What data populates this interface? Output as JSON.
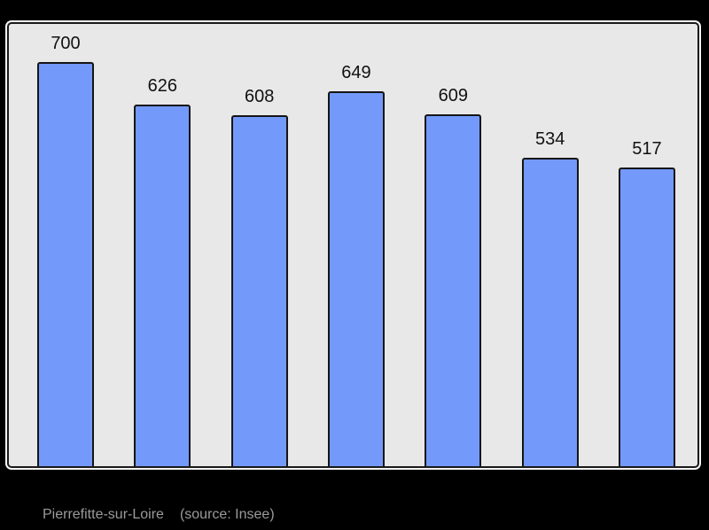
{
  "chart_data": {
    "type": "bar",
    "values": [
      700,
      626,
      608,
      649,
      609,
      534,
      517
    ],
    "bar_labels": [
      "700",
      "626",
      "608",
      "649",
      "609",
      "534",
      "517"
    ],
    "categories": [
      "",
      "",
      "",
      "",
      "",
      "",
      ""
    ],
    "title": "",
    "xlabel": "",
    "ylabel": "",
    "ylim": [
      0,
      770
    ],
    "grid": false,
    "legend": false,
    "axes_visible": false,
    "bar_color": "#7399fa",
    "bar_border_color": "#151515"
  },
  "caption": {
    "location": "Pierrefitte-sur-Loire",
    "source": "(source: Insee)"
  },
  "colors": {
    "page_background": "#000000",
    "panel_background": "#e8e8e8",
    "panel_border": "#1a1a1a",
    "panel_outline": "#f6f6f6",
    "label_text": "#111111",
    "caption_text": "#9b9b9b"
  }
}
